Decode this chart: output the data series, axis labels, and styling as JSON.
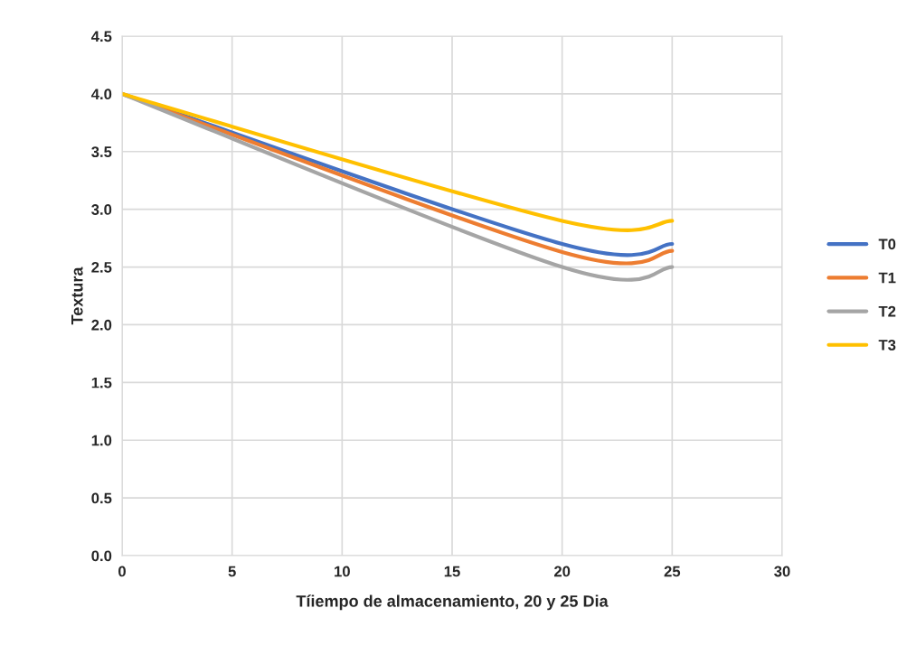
{
  "chart_data": {
    "type": "line",
    "xlabel": "Tíiempo de almacenamiento, 20 y 25 Dia",
    "ylabel": "Textura",
    "x": [
      0,
      20,
      25
    ],
    "series": [
      {
        "name": "T0",
        "color": "#4472c4",
        "values": [
          4.0,
          2.7,
          2.7
        ]
      },
      {
        "name": "T1",
        "color": "#ed7d31",
        "values": [
          4.0,
          2.63,
          2.64
        ]
      },
      {
        "name": "T2",
        "color": "#a5a5a5",
        "values": [
          4.0,
          2.5,
          2.5
        ]
      },
      {
        "name": "T3",
        "color": "#ffc000",
        "values": [
          4.0,
          2.9,
          2.9
        ]
      }
    ],
    "xlim": [
      0,
      30
    ],
    "xticks": [
      0,
      5,
      10,
      15,
      20,
      25,
      30
    ],
    "ylim": [
      0.0,
      4.5
    ],
    "yticks": [
      {
        "value": 0,
        "label": "0.0"
      },
      {
        "value": 0.5,
        "label": "0.5"
      },
      {
        "value": 1,
        "label": "1.0"
      },
      {
        "value": 1.5,
        "label": "1.5"
      },
      {
        "value": 2,
        "label": "2.0"
      },
      {
        "value": 2.5,
        "label": "2.5"
      },
      {
        "value": 3,
        "label": "3.0"
      },
      {
        "value": 3.5,
        "label": "3.5"
      },
      {
        "value": 4,
        "label": "4.0"
      },
      {
        "value": 4.5,
        "label": "4.5"
      }
    ],
    "grid": true,
    "legend": "right",
    "marker": "none",
    "line_style": "solid"
  }
}
